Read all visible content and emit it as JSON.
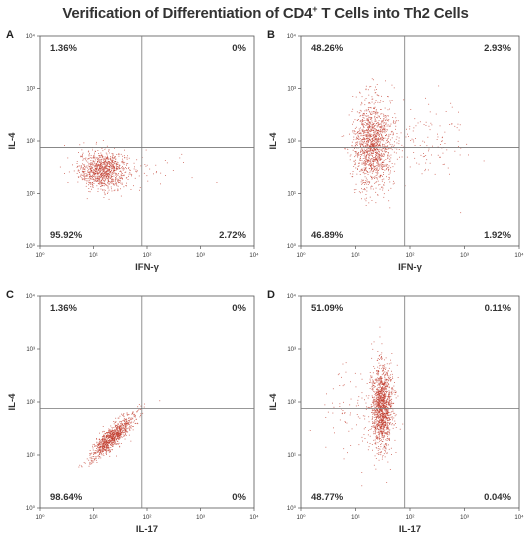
{
  "title": {
    "prefix": "Verification of Differentiation of CD4",
    "superscript": "+",
    "suffix": " T Cells into Th2 Cells"
  },
  "colors": {
    "dots": "#c0392b",
    "frame": "#555555",
    "gate": "#777777"
  },
  "chart_data": [
    {
      "type": "scatter",
      "panel": "A",
      "xlabel": "IFN-γ",
      "ylabel": "IL-4",
      "scale": "log",
      "xlim": [
        1,
        10000
      ],
      "ylim": [
        1,
        10000
      ],
      "ticks": [
        "10⁰",
        "10¹",
        "10²",
        "10³",
        "10⁴"
      ],
      "gate": {
        "x": 80,
        "y": 75
      },
      "quadrants": {
        "upper_left": "1.36%",
        "upper_right": "0%",
        "lower_left": "95.92%",
        "lower_right": "2.72%"
      },
      "clusters": [
        {
          "center_x": 15,
          "center_y": 28,
          "spread_x": 0.23,
          "spread_y": 0.18,
          "count": 950
        },
        {
          "center_x": 130,
          "center_y": 30,
          "spread_x": 0.35,
          "spread_y": 0.15,
          "count": 35
        }
      ]
    },
    {
      "type": "scatter",
      "panel": "B",
      "xlabel": "IFN-γ",
      "ylabel": "IL-4",
      "scale": "log",
      "xlim": [
        1,
        10000
      ],
      "ylim": [
        1,
        10000
      ],
      "ticks": [
        "10⁰",
        "10¹",
        "10²",
        "10³",
        "10⁴"
      ],
      "gate": {
        "x": 80,
        "y": 75
      },
      "quadrants": {
        "upper_left": "48.26%",
        "upper_right": "2.93%",
        "lower_left": "46.89%",
        "lower_right": "1.92%"
      },
      "clusters": [
        {
          "center_x": 20,
          "center_y": 90,
          "spread_x": 0.18,
          "spread_y": 0.42,
          "count": 1300
        },
        {
          "center_x": 200,
          "center_y": 90,
          "spread_x": 0.35,
          "spread_y": 0.35,
          "count": 120
        }
      ]
    },
    {
      "type": "scatter",
      "panel": "C",
      "xlabel": "IL-17",
      "ylabel": "IL-4",
      "scale": "log",
      "xlim": [
        1,
        10000
      ],
      "ylim": [
        1,
        10000
      ],
      "ticks": [
        "10⁰",
        "10¹",
        "10²",
        "10³",
        "10⁴"
      ],
      "gate": {
        "x": 80,
        "y": 75
      },
      "quadrants": {
        "upper_left": "1.36%",
        "upper_right": "0%",
        "lower_left": "98.64%",
        "lower_right": "0%"
      },
      "clusters": [
        {
          "center_x": 22,
          "center_y": 22,
          "spread_x": 0.2,
          "spread_y": 0.2,
          "count": 900,
          "correlation": 0.85
        }
      ]
    },
    {
      "type": "scatter",
      "panel": "D",
      "xlabel": "IL-17",
      "ylabel": "IL-4",
      "scale": "log",
      "xlim": [
        1,
        10000
      ],
      "ylim": [
        1,
        10000
      ],
      "ticks": [
        "10⁰",
        "10¹",
        "10²",
        "10³",
        "10⁴"
      ],
      "gate": {
        "x": 80,
        "y": 75
      },
      "quadrants": {
        "upper_left": "51.09%",
        "upper_right": "0.11%",
        "lower_left": "48.77%",
        "lower_right": "0.04%"
      },
      "clusters": [
        {
          "center_x": 30,
          "center_y": 80,
          "spread_x": 0.1,
          "spread_y": 0.4,
          "count": 1300
        },
        {
          "center_x": 8,
          "center_y": 60,
          "spread_x": 0.3,
          "spread_y": 0.45,
          "count": 90
        }
      ]
    }
  ]
}
